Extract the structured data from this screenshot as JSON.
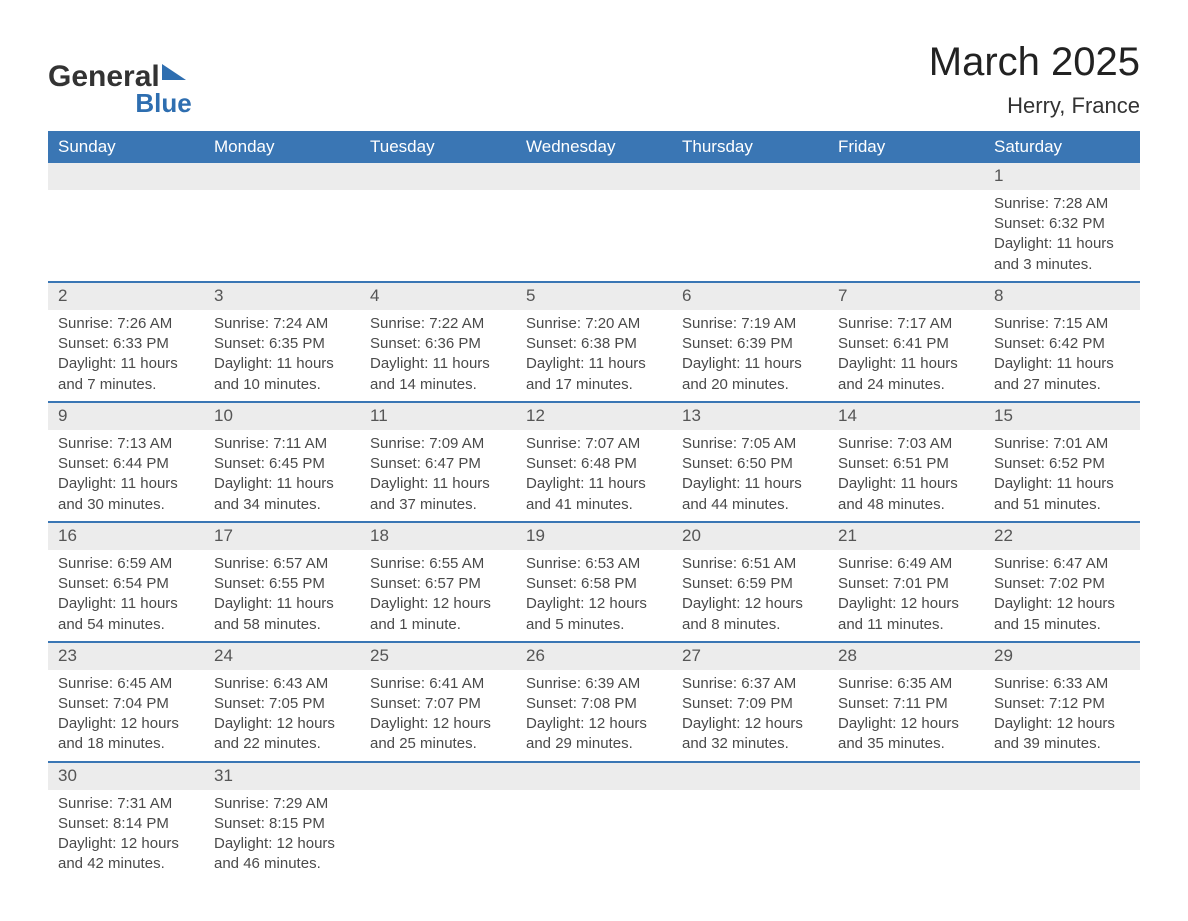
{
  "logo": {
    "general": "General",
    "blue": "Blue"
  },
  "title": "March 2025",
  "location": "Herry, France",
  "colors": {
    "header_bg": "#3a76b4",
    "header_text": "#ffffff",
    "daynum_bg": "#ececec",
    "border": "#3a76b4",
    "body_text": "#4a4a4a",
    "logo_accent": "#2e6eb0"
  },
  "weekdays": [
    "Sunday",
    "Monday",
    "Tuesday",
    "Wednesday",
    "Thursday",
    "Friday",
    "Saturday"
  ],
  "weeks": [
    {
      "nums": [
        "",
        "",
        "",
        "",
        "",
        "",
        "1"
      ],
      "details": [
        "",
        "",
        "",
        "",
        "",
        "",
        "Sunrise: 7:28 AM\nSunset: 6:32 PM\nDaylight: 11 hours and 3 minutes."
      ]
    },
    {
      "nums": [
        "2",
        "3",
        "4",
        "5",
        "6",
        "7",
        "8"
      ],
      "details": [
        "Sunrise: 7:26 AM\nSunset: 6:33 PM\nDaylight: 11 hours and 7 minutes.",
        "Sunrise: 7:24 AM\nSunset: 6:35 PM\nDaylight: 11 hours and 10 minutes.",
        "Sunrise: 7:22 AM\nSunset: 6:36 PM\nDaylight: 11 hours and 14 minutes.",
        "Sunrise: 7:20 AM\nSunset: 6:38 PM\nDaylight: 11 hours and 17 minutes.",
        "Sunrise: 7:19 AM\nSunset: 6:39 PM\nDaylight: 11 hours and 20 minutes.",
        "Sunrise: 7:17 AM\nSunset: 6:41 PM\nDaylight: 11 hours and 24 minutes.",
        "Sunrise: 7:15 AM\nSunset: 6:42 PM\nDaylight: 11 hours and 27 minutes."
      ]
    },
    {
      "nums": [
        "9",
        "10",
        "11",
        "12",
        "13",
        "14",
        "15"
      ],
      "details": [
        "Sunrise: 7:13 AM\nSunset: 6:44 PM\nDaylight: 11 hours and 30 minutes.",
        "Sunrise: 7:11 AM\nSunset: 6:45 PM\nDaylight: 11 hours and 34 minutes.",
        "Sunrise: 7:09 AM\nSunset: 6:47 PM\nDaylight: 11 hours and 37 minutes.",
        "Sunrise: 7:07 AM\nSunset: 6:48 PM\nDaylight: 11 hours and 41 minutes.",
        "Sunrise: 7:05 AM\nSunset: 6:50 PM\nDaylight: 11 hours and 44 minutes.",
        "Sunrise: 7:03 AM\nSunset: 6:51 PM\nDaylight: 11 hours and 48 minutes.",
        "Sunrise: 7:01 AM\nSunset: 6:52 PM\nDaylight: 11 hours and 51 minutes."
      ]
    },
    {
      "nums": [
        "16",
        "17",
        "18",
        "19",
        "20",
        "21",
        "22"
      ],
      "details": [
        "Sunrise: 6:59 AM\nSunset: 6:54 PM\nDaylight: 11 hours and 54 minutes.",
        "Sunrise: 6:57 AM\nSunset: 6:55 PM\nDaylight: 11 hours and 58 minutes.",
        "Sunrise: 6:55 AM\nSunset: 6:57 PM\nDaylight: 12 hours and 1 minute.",
        "Sunrise: 6:53 AM\nSunset: 6:58 PM\nDaylight: 12 hours and 5 minutes.",
        "Sunrise: 6:51 AM\nSunset: 6:59 PM\nDaylight: 12 hours and 8 minutes.",
        "Sunrise: 6:49 AM\nSunset: 7:01 PM\nDaylight: 12 hours and 11 minutes.",
        "Sunrise: 6:47 AM\nSunset: 7:02 PM\nDaylight: 12 hours and 15 minutes."
      ]
    },
    {
      "nums": [
        "23",
        "24",
        "25",
        "26",
        "27",
        "28",
        "29"
      ],
      "details": [
        "Sunrise: 6:45 AM\nSunset: 7:04 PM\nDaylight: 12 hours and 18 minutes.",
        "Sunrise: 6:43 AM\nSunset: 7:05 PM\nDaylight: 12 hours and 22 minutes.",
        "Sunrise: 6:41 AM\nSunset: 7:07 PM\nDaylight: 12 hours and 25 minutes.",
        "Sunrise: 6:39 AM\nSunset: 7:08 PM\nDaylight: 12 hours and 29 minutes.",
        "Sunrise: 6:37 AM\nSunset: 7:09 PM\nDaylight: 12 hours and 32 minutes.",
        "Sunrise: 6:35 AM\nSunset: 7:11 PM\nDaylight: 12 hours and 35 minutes.",
        "Sunrise: 6:33 AM\nSunset: 7:12 PM\nDaylight: 12 hours and 39 minutes."
      ]
    },
    {
      "nums": [
        "30",
        "31",
        "",
        "",
        "",
        "",
        ""
      ],
      "details": [
        "Sunrise: 7:31 AM\nSunset: 8:14 PM\nDaylight: 12 hours and 42 minutes.",
        "Sunrise: 7:29 AM\nSunset: 8:15 PM\nDaylight: 12 hours and 46 minutes.",
        "",
        "",
        "",
        "",
        ""
      ]
    }
  ]
}
